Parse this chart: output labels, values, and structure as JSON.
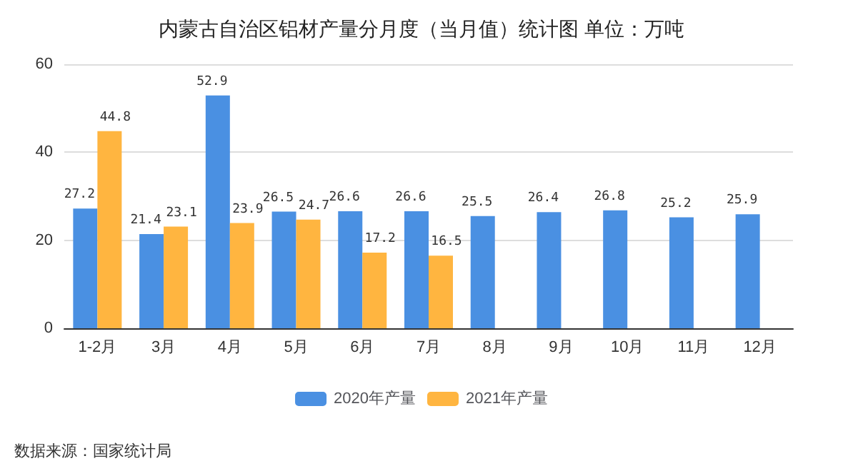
{
  "chart_data": {
    "type": "bar",
    "title": "内蒙古自治区铝材产量分月度（当月值）统计图 单位：万吨",
    "categories": [
      "1-2月",
      "3月",
      "4月",
      "5月",
      "6月",
      "7月",
      "8月",
      "9月",
      "10月",
      "11月",
      "12月"
    ],
    "series": [
      {
        "name": "2020年产量",
        "color": "#4a90e2",
        "values": [
          27.2,
          21.4,
          52.9,
          26.5,
          26.6,
          26.6,
          25.5,
          26.4,
          26.8,
          25.2,
          25.9
        ]
      },
      {
        "name": "2021年产量",
        "color": "#ffb540",
        "values": [
          44.8,
          23.1,
          23.9,
          24.7,
          17.2,
          16.5,
          null,
          null,
          null,
          null,
          null
        ]
      }
    ],
    "ylim": [
      0,
      60
    ],
    "yticks": [
      0,
      20,
      40,
      60
    ],
    "grid": "y",
    "legend": "bottom",
    "data_labels": true,
    "annotations": [
      "数据来源：国家统计局"
    ]
  }
}
